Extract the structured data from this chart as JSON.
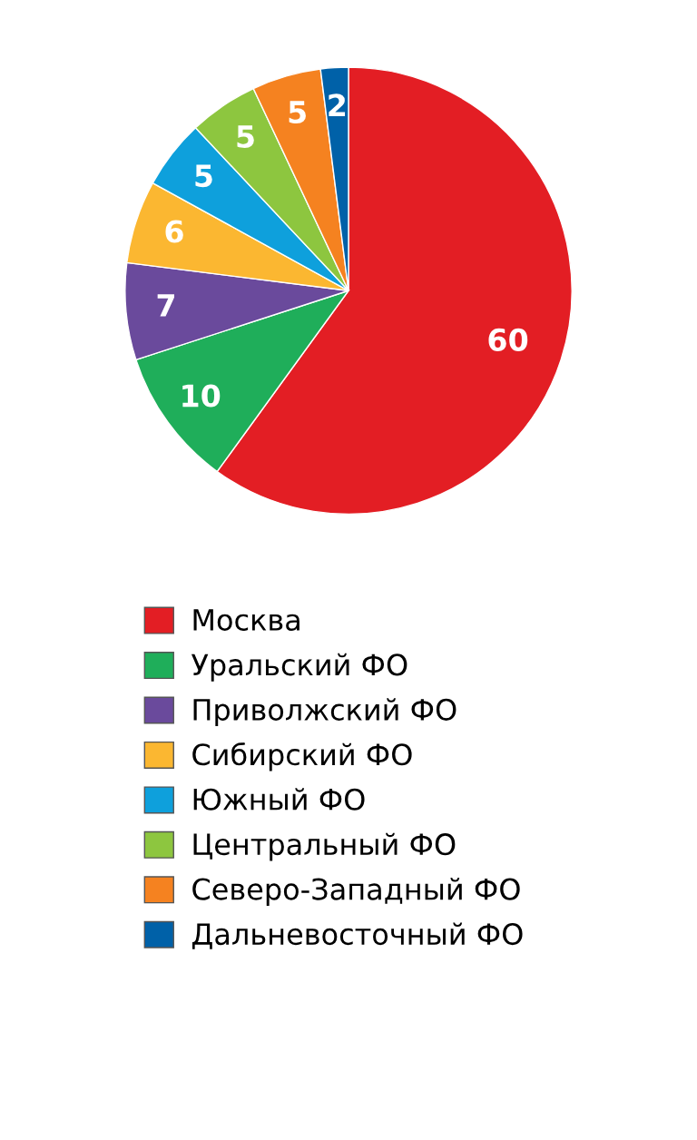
{
  "chart_data": {
    "type": "pie",
    "categories": [
      "Москва",
      "Уральский ФО",
      "Приволжский ФО",
      "Сибирский ФО",
      "Южный ФО",
      "Центральный ФО",
      "Северо-Западный ФО",
      "Дальневосточный ФО"
    ],
    "values": [
      60,
      10,
      7,
      6,
      5,
      5,
      5,
      2
    ],
    "colors": [
      "#e31e24",
      "#1fae5a",
      "#6a4a9c",
      "#fbb731",
      "#0ea0dc",
      "#8dc63f",
      "#f58220",
      "#0061a8"
    ],
    "data_labels": true,
    "legend": "bottom"
  }
}
